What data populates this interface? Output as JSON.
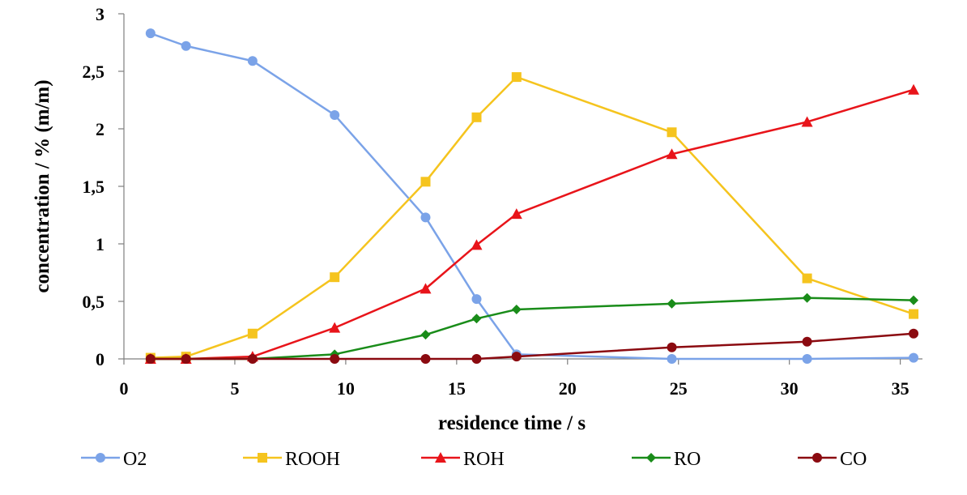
{
  "chart_data": {
    "type": "line",
    "title": "",
    "xlabel": "residence time  / s",
    "ylabel": "concentration / % (m/m)",
    "xlim": [
      0,
      36
    ],
    "ylim": [
      0,
      3
    ],
    "x_ticks": [
      0,
      5,
      10,
      15,
      20,
      25,
      30,
      35
    ],
    "x_tick_labels": [
      "0",
      "5",
      "10",
      "15",
      "20",
      "25",
      "30",
      "35"
    ],
    "y_ticks": [
      0,
      0.5,
      1,
      1.5,
      2,
      2.5,
      3
    ],
    "y_tick_labels": [
      "0",
      "0,5",
      "1",
      "1,5",
      "2",
      "2,5",
      "3"
    ],
    "grid": false,
    "legend_position": "bottom",
    "x": [
      1.2,
      2.8,
      5.8,
      9.5,
      13.6,
      15.9,
      17.7,
      24.7,
      30.8,
      35.6
    ],
    "series": [
      {
        "name": "O2",
        "color": "#7BA3E8",
        "marker": "circle",
        "values": [
          2.83,
          2.72,
          2.59,
          2.12,
          1.23,
          0.52,
          0.04,
          0.0,
          0.0,
          0.01
        ]
      },
      {
        "name": "ROOH",
        "color": "#F5C41E",
        "marker": "square",
        "values": [
          0.01,
          0.02,
          0.22,
          0.71,
          1.54,
          2.1,
          2.45,
          1.97,
          0.7,
          0.39
        ]
      },
      {
        "name": "ROH",
        "color": "#E8141A",
        "marker": "triangle",
        "values": [
          0.0,
          0.0,
          0.02,
          0.27,
          0.61,
          0.99,
          1.26,
          1.78,
          2.06,
          2.34
        ]
      },
      {
        "name": "RO",
        "color": "#198C19",
        "marker": "diamond",
        "values": [
          0.0,
          0.0,
          0.0,
          0.04,
          0.21,
          0.35,
          0.43,
          0.48,
          0.53,
          0.51
        ]
      },
      {
        "name": "CO",
        "color": "#8B0A10",
        "marker": "circle",
        "values": [
          0.0,
          0.0,
          0.0,
          0.0,
          0.0,
          0.0,
          0.02,
          0.1,
          0.15,
          0.22
        ]
      }
    ]
  }
}
